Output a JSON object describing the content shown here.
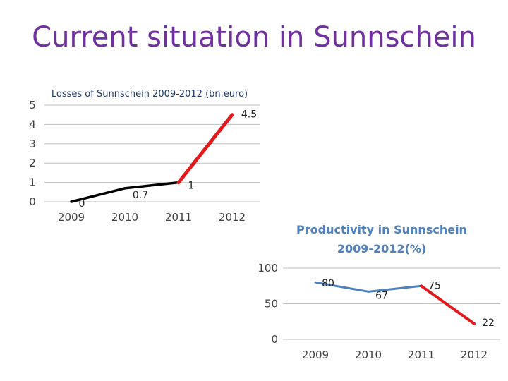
{
  "slide": {
    "title": "Current situation in Sunnschein"
  },
  "chart_data": [
    {
      "type": "line",
      "title": "Losses of Sunnschein 2009-2012 (bn.euro)",
      "categories": [
        "2009",
        "2010",
        "2011",
        "2012"
      ],
      "values": [
        0,
        0.7,
        1,
        4.5
      ],
      "data_labels": [
        "0",
        "0.7",
        "1",
        "4.5"
      ],
      "y_ticks": [
        "0",
        "1",
        "2",
        "3",
        "4",
        "5"
      ],
      "ylim": [
        0,
        5
      ],
      "grid": true,
      "colors": {
        "line": "#000000",
        "highlight": "#e31a1c",
        "grid": "#bfbfbf"
      }
    },
    {
      "type": "line",
      "title_lines": [
        "Productivity in Sunnschein",
        "2009-2012(%)"
      ],
      "categories": [
        "2009",
        "2010",
        "2011",
        "2012"
      ],
      "values": [
        80,
        67,
        75,
        22
      ],
      "data_labels": [
        "80",
        "67",
        "75",
        "22"
      ],
      "y_ticks": [
        "0",
        "50",
        "100"
      ],
      "ylim": [
        0,
        100
      ],
      "grid": true,
      "colors": {
        "line": "#4f81bd",
        "highlight": "#e31a1c",
        "grid": "#bfbfbf"
      }
    }
  ]
}
